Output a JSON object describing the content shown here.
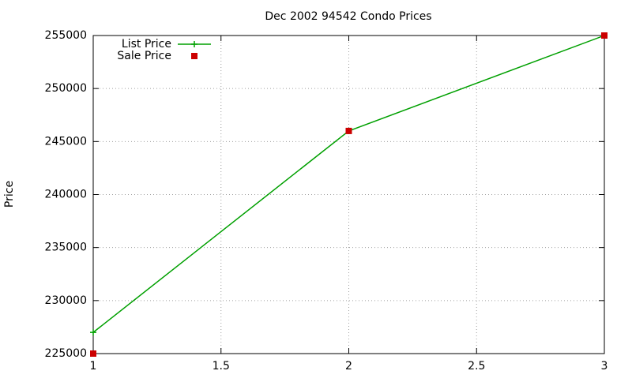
{
  "chart_data": {
    "type": "line",
    "title": "Dec 2002 94542 Condo Prices",
    "y_label": "Price",
    "x": [
      1,
      2,
      3
    ],
    "series": [
      {
        "name": "List Price",
        "color": "#00a000",
        "mode": "lines+points",
        "marker": "plus",
        "values": [
          227000,
          246000,
          255000
        ]
      },
      {
        "name": "Sale Price",
        "color": "#cc0000",
        "mode": "points",
        "marker": "square",
        "values": [
          225000,
          246000,
          255000
        ]
      }
    ],
    "xlim": [
      1,
      3
    ],
    "xticks": [
      1,
      1.5,
      2,
      2.5,
      3
    ],
    "ylim": [
      225000,
      255000
    ],
    "yticks": [
      225000,
      230000,
      235000,
      240000,
      245000,
      250000,
      255000
    ],
    "grid": true,
    "legend": "top-left"
  }
}
